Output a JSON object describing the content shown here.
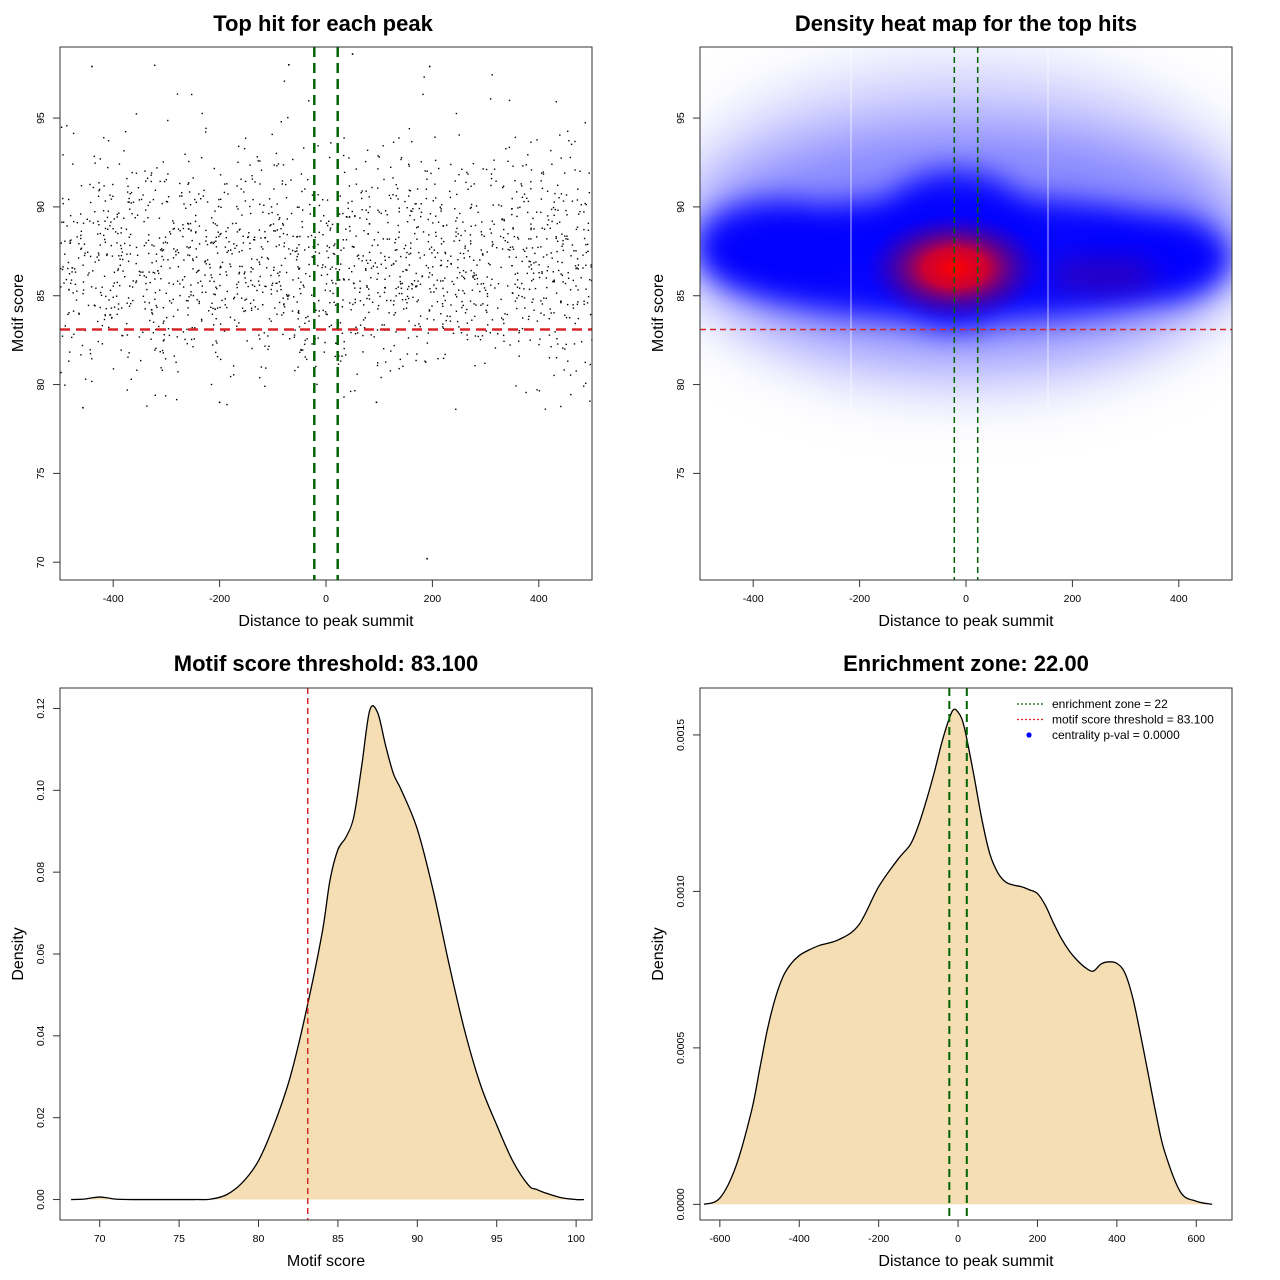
{
  "chart_data": [
    {
      "id": "scatter",
      "type": "scatter",
      "title": "Top hit for each peak",
      "xlabel": "Distance to peak summit",
      "ylabel": "Motif score",
      "xlim": [
        -500,
        500
      ],
      "ylim": [
        69,
        99
      ],
      "xticks": [
        -400,
        -200,
        0,
        200,
        400
      ],
      "yticks": [
        70,
        75,
        80,
        85,
        90,
        95
      ],
      "point_color": "#000000",
      "points_summary": {
        "count": 1800,
        "x_range": [
          -500,
          500
        ],
        "y_center": 87.0,
        "y_range": [
          78.5,
          98
        ]
      },
      "notable_points": [
        {
          "x": 190,
          "y": 70.2
        },
        {
          "x": -440,
          "y": 97.9
        },
        {
          "x": -70,
          "y": 98.0
        },
        {
          "x": 195,
          "y": 97.9
        },
        {
          "x": 50,
          "y": 98.6
        },
        {
          "x": -457,
          "y": 78.7
        },
        {
          "x": -200,
          "y": 79.0
        },
        {
          "x": 95,
          "y": 79.0
        }
      ],
      "hlines": [
        {
          "y": 83.1,
          "color": "#d62728"
        }
      ],
      "vlines": [
        {
          "x": -22,
          "color": "#006400"
        },
        {
          "x": 22,
          "color": "#006400"
        }
      ],
      "grid": false
    },
    {
      "id": "heatmap",
      "type": "heatmap",
      "title": "Density heat map for the top hits",
      "xlabel": "Distance to peak summit",
      "ylabel": "Motif score",
      "xlim": [
        -500,
        500
      ],
      "ylim": [
        69,
        99
      ],
      "xticks": [
        -400,
        -200,
        0,
        200,
        400
      ],
      "yticks": [
        75,
        80,
        85,
        90,
        95
      ],
      "colors": {
        "low": "#ffffff",
        "mid": "#0000ff",
        "high": "#ff0000"
      },
      "density_peak": {
        "x": -25,
        "y": 87
      },
      "hlines": [
        {
          "y": 83.1,
          "color": "#d62728"
        }
      ],
      "vlines": [
        {
          "x": -22,
          "color": "#006400"
        },
        {
          "x": 22,
          "color": "#006400"
        }
      ],
      "grid": false
    },
    {
      "id": "score-density",
      "type": "area",
      "title": "Motif score threshold: 83.100",
      "xlabel": "Motif score",
      "ylabel": "Density",
      "xlim": [
        67.5,
        101
      ],
      "ylim": [
        -0.005,
        0.125
      ],
      "xticks": [
        70,
        75,
        80,
        85,
        90,
        95,
        100
      ],
      "yticks": [
        0.0,
        0.02,
        0.04,
        0.06,
        0.08,
        0.1,
        0.12
      ],
      "ytick_labels": [
        "0.00",
        "0.02",
        "0.04",
        "0.06",
        "0.08",
        "0.10",
        "0.12"
      ],
      "fill_color": "#f5deb3",
      "line_color": "#000000",
      "x": [
        68.2,
        69.0,
        69.5,
        70.0,
        70.5,
        71.0,
        72,
        74,
        76,
        77,
        78,
        79,
        80,
        81,
        82,
        83,
        84,
        84.5,
        85,
        85.5,
        86,
        86.5,
        87,
        87.5,
        88,
        88.5,
        89,
        90,
        91,
        92,
        93,
        94,
        95,
        96,
        97,
        97.5,
        98,
        99,
        100,
        100.5
      ],
      "y": [
        0.0,
        0.0001,
        0.0004,
        0.0006,
        0.0004,
        0.0001,
        0.0,
        0.0,
        0.0,
        0.0001,
        0.0012,
        0.0042,
        0.0095,
        0.0185,
        0.03,
        0.046,
        0.065,
        0.078,
        0.0855,
        0.0885,
        0.0935,
        0.106,
        0.1195,
        0.119,
        0.111,
        0.104,
        0.1,
        0.0905,
        0.0755,
        0.0575,
        0.041,
        0.0278,
        0.0182,
        0.0095,
        0.0035,
        0.0025,
        0.0017,
        0.0005,
        0.0,
        0.0
      ],
      "vlines": [
        {
          "x": 83.1,
          "color": "#d62728"
        }
      ],
      "grid": false
    },
    {
      "id": "distance-density",
      "type": "area",
      "title": "Enrichment zone: 22.00",
      "xlabel": "Distance to peak summit",
      "ylabel": "Density",
      "xlim": [
        -650,
        690
      ],
      "ylim": [
        -5e-05,
        0.00165
      ],
      "xticks": [
        -600,
        -400,
        -200,
        0,
        200,
        400,
        600
      ],
      "yticks": [
        0.0,
        0.0005,
        0.001,
        0.0015
      ],
      "ytick_labels": [
        "0.0000",
        "0.0005",
        "0.0010",
        "0.0015"
      ],
      "fill_color": "#f5deb3",
      "line_color": "#000000",
      "x": [
        -640,
        -600,
        -560,
        -520,
        -500,
        -480,
        -460,
        -440,
        -420,
        -400,
        -380,
        -350,
        -300,
        -250,
        -200,
        -150,
        -120,
        -100,
        -80,
        -60,
        -40,
        -20,
        -10,
        0,
        10,
        20,
        40,
        60,
        80,
        100,
        120,
        140,
        160,
        180,
        200,
        220,
        240,
        260,
        280,
        300,
        320,
        340,
        360,
        380,
        400,
        420,
        440,
        460,
        480,
        500,
        520,
        560,
        600,
        640
      ],
      "y": [
        0.0,
        2e-05,
        0.00012,
        0.0003,
        0.00043,
        0.00056,
        0.00066,
        0.00073,
        0.00077,
        0.000795,
        0.00081,
        0.000827,
        0.000846,
        0.000893,
        0.001015,
        0.001105,
        0.00115,
        0.00121,
        0.00129,
        0.00138,
        0.00148,
        0.00156,
        0.001582,
        0.001573,
        0.00155,
        0.0015,
        0.00137,
        0.00123,
        0.00112,
        0.00106,
        0.00103,
        0.00102,
        0.001015,
        0.001005,
        0.000993,
        0.000955,
        0.0009,
        0.00085,
        0.00081,
        0.00078,
        0.000757,
        0.000745,
        0.000768,
        0.000775,
        0.00077,
        0.00074,
        0.00066,
        0.00054,
        0.00041,
        0.00028,
        0.00017,
        4e-05,
        1e-05,
        0.0
      ],
      "vlines": [
        {
          "x": -22,
          "color": "#006400"
        },
        {
          "x": 22,
          "color": "#006400"
        }
      ],
      "legend": {
        "position": "top-right",
        "entries": [
          {
            "label": "enrichment zone = 22",
            "color": "#006400",
            "style": "dotted-line"
          },
          {
            "label": "motif score threshold = 83.100",
            "color": "#d62728",
            "style": "dotted-line"
          },
          {
            "label": "centrality p-val = 0.0000",
            "color": "#0000ff",
            "style": "point"
          }
        ]
      },
      "grid": false
    }
  ]
}
